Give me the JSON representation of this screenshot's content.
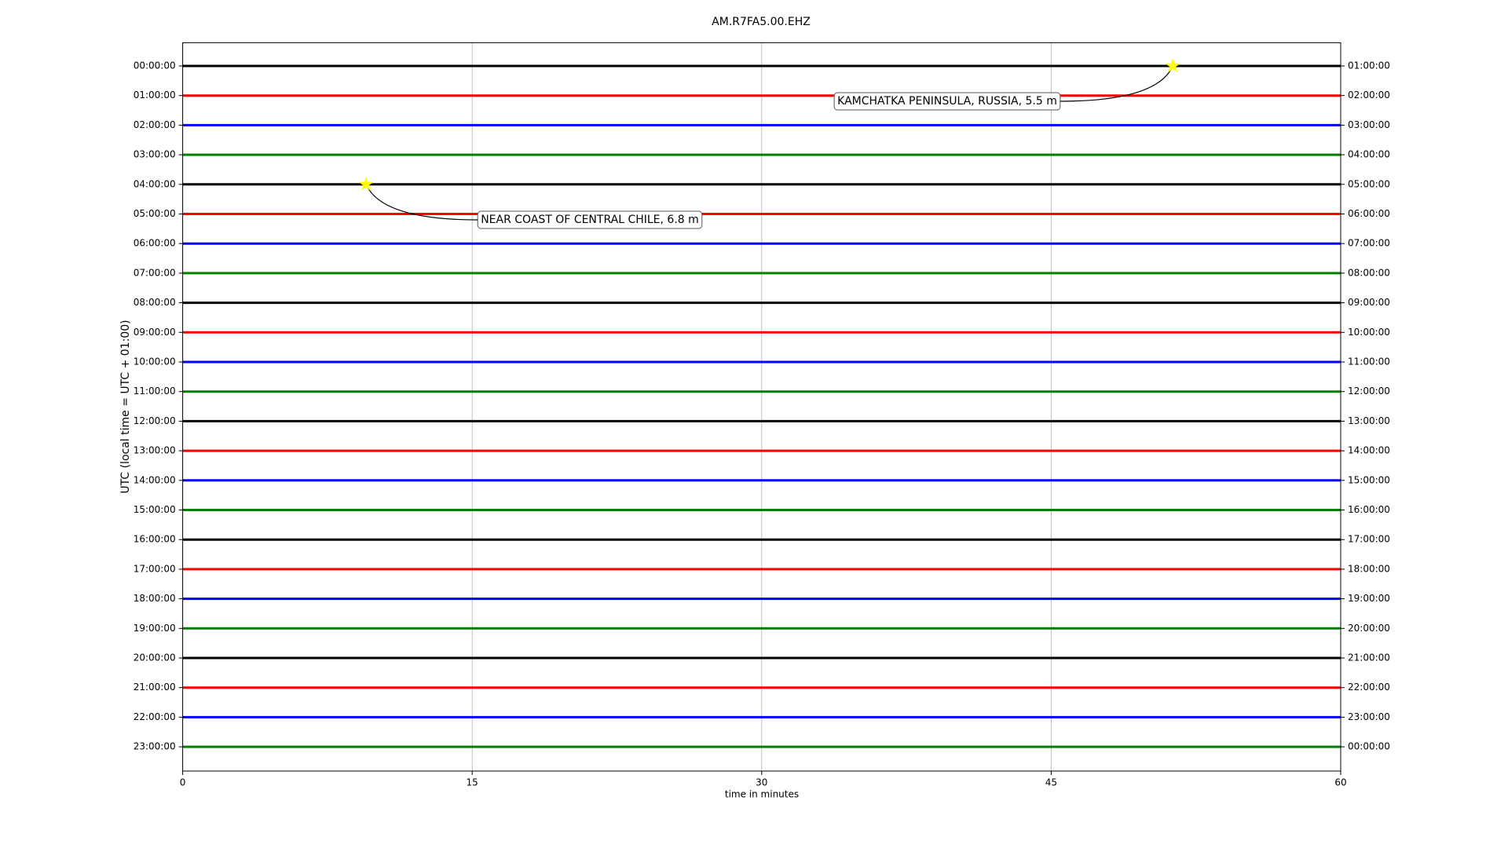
{
  "chart_data": {
    "type": "helicorder",
    "title": "AM.R7FA5.00.EHZ",
    "x_label": "time in minutes",
    "y_label": "UTC (local time = UTC + 01:00)",
    "xlim": [
      0,
      60
    ],
    "xticks": [
      0,
      15,
      30,
      45,
      60
    ],
    "grid": true,
    "colors": [
      "black",
      "red",
      "blue",
      "green"
    ],
    "rows": [
      "00:00:00",
      "01:00:00",
      "02:00:00",
      "03:00:00",
      "04:00:00",
      "05:00:00",
      "06:00:00",
      "07:00:00",
      "08:00:00",
      "09:00:00",
      "10:00:00",
      "11:00:00",
      "12:00:00",
      "13:00:00",
      "14:00:00",
      "15:00:00",
      "16:00:00",
      "17:00:00",
      "18:00:00",
      "19:00:00",
      "20:00:00",
      "21:00:00",
      "22:00:00",
      "23:00:00"
    ],
    "right_labels": [
      "01:00:00",
      "02:00:00",
      "03:00:00",
      "04:00:00",
      "05:00:00",
      "06:00:00",
      "07:00:00",
      "08:00:00",
      "09:00:00",
      "10:00:00",
      "11:00:00",
      "12:00:00",
      "13:00:00",
      "14:00:00",
      "15:00:00",
      "16:00:00",
      "17:00:00",
      "18:00:00",
      "19:00:00",
      "20:00:00",
      "21:00:00",
      "22:00:00",
      "23:00:00",
      "00:00:00"
    ],
    "events": [
      {
        "label": "KAMCHATKA PENINSULA, RUSSIA, 5.5 m",
        "x": 51.3,
        "row": 0
      },
      {
        "label": "NEAR COAST OF CENTRAL CHILE, 6.8 m",
        "x": 9.5,
        "row": 4
      }
    ]
  }
}
